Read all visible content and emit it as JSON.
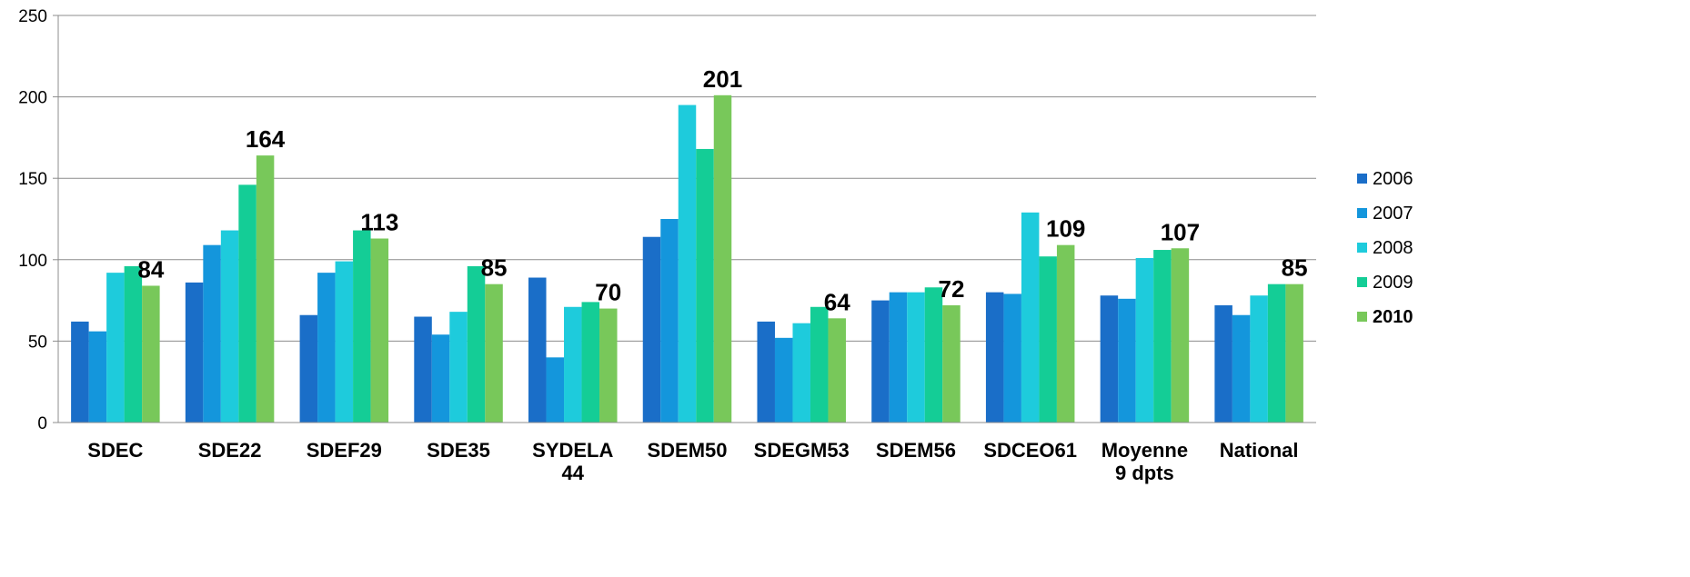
{
  "chart_data": {
    "type": "bar",
    "categories": [
      [
        "SDEC"
      ],
      [
        "SDE22"
      ],
      [
        "SDEF29"
      ],
      [
        "SDE35"
      ],
      [
        "SYDELA",
        "44"
      ],
      [
        "SDEM50"
      ],
      [
        "SDEGM53"
      ],
      [
        "SDEM56"
      ],
      [
        "SDCEO61"
      ],
      [
        "Moyenne",
        "9 dpts"
      ],
      [
        "National"
      ]
    ],
    "series": [
      {
        "name": "2006",
        "color": "#1a6ec8",
        "values": [
          62,
          86,
          66,
          65,
          89,
          114,
          62,
          75,
          80,
          78,
          72
        ]
      },
      {
        "name": "2007",
        "color": "#1496dc",
        "values": [
          56,
          109,
          92,
          54,
          40,
          125,
          52,
          80,
          79,
          76,
          66
        ]
      },
      {
        "name": "2008",
        "color": "#1ecbdc",
        "values": [
          92,
          118,
          99,
          68,
          71,
          195,
          61,
          80,
          129,
          101,
          78
        ]
      },
      {
        "name": "2009",
        "color": "#14cd96",
        "values": [
          96,
          146,
          118,
          96,
          74,
          168,
          71,
          83,
          102,
          106,
          85
        ]
      },
      {
        "name": "2010",
        "color": "#78c85a",
        "values": [
          84,
          164,
          113,
          85,
          70,
          201,
          64,
          72,
          109,
          107,
          85
        ]
      }
    ],
    "data_labels": [
      "84",
      "164",
      "113",
      "85",
      "70",
      "201",
      "64",
      "72",
      "109",
      "107",
      "85"
    ],
    "bold_legend_series": "2010",
    "ylim": [
      0,
      250
    ],
    "yticks": [
      0,
      50,
      100,
      150,
      200,
      250
    ],
    "title": "",
    "xlabel": "",
    "ylabel": "",
    "grid": true,
    "legend_position": "right"
  }
}
